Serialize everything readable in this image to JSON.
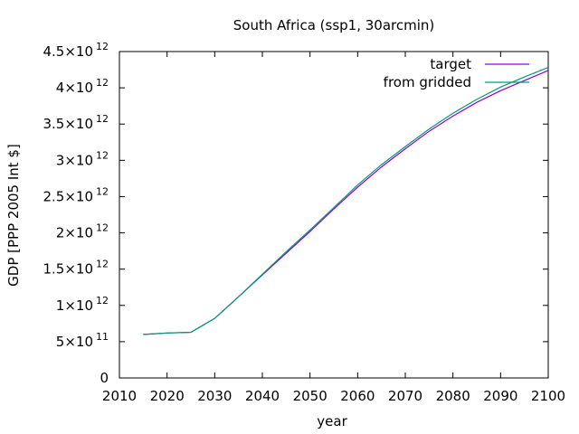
{
  "chart_data": {
    "type": "line",
    "title": "South Africa (ssp1, 30arcmin)",
    "xlabel": "year",
    "ylabel": "GDP [PPP 2005 Int $]",
    "xlim": [
      2010,
      2100
    ],
    "ylim": [
      0,
      4500000000000.0
    ],
    "xticks": [
      2010,
      2020,
      2030,
      2040,
      2050,
      2060,
      2070,
      2080,
      2090,
      2100
    ],
    "xtick_labels": [
      "2010",
      "2020",
      "2030",
      "2040",
      "2050",
      "2060",
      "2070",
      "2080",
      "2090",
      "2100"
    ],
    "yticks": [
      {
        "value": 0,
        "mant": "0",
        "exp": ""
      },
      {
        "value": 500000000000.0,
        "mant": "5×10",
        "exp": "11"
      },
      {
        "value": 1000000000000.0,
        "mant": "1×10",
        "exp": "12"
      },
      {
        "value": 1500000000000.0,
        "mant": "1.5×10",
        "exp": "12"
      },
      {
        "value": 2000000000000.0,
        "mant": "2×10",
        "exp": "12"
      },
      {
        "value": 2500000000000.0,
        "mant": "2.5×10",
        "exp": "12"
      },
      {
        "value": 3000000000000.0,
        "mant": "3×10",
        "exp": "12"
      },
      {
        "value": 3500000000000.0,
        "mant": "3.5×10",
        "exp": "12"
      },
      {
        "value": 4000000000000.0,
        "mant": "4×10",
        "exp": "12"
      },
      {
        "value": 4500000000000.0,
        "mant": "4.5×10",
        "exp": "12"
      }
    ],
    "grid": false,
    "legend_position": "top-right",
    "series": [
      {
        "name": "target",
        "color": "#9400d3",
        "x": [
          2015,
          2020,
          2025,
          2030,
          2035,
          2040,
          2045,
          2050,
          2055,
          2060,
          2065,
          2070,
          2075,
          2080,
          2085,
          2090,
          2095,
          2100
        ],
        "y": [
          600000000000.0,
          620000000000.0,
          630000000000.0,
          820000000000.0,
          1120000000000.0,
          1420000000000.0,
          1720000000000.0,
          2020000000000.0,
          2330000000000.0,
          2630000000000.0,
          2910000000000.0,
          3160000000000.0,
          3400000000000.0,
          3610000000000.0,
          3800000000000.0,
          3960000000000.0,
          4100000000000.0,
          4240000000000.0
        ]
      },
      {
        "name": "from gridded",
        "color": "#009e73",
        "x": [
          2015,
          2020,
          2025,
          2030,
          2035,
          2040,
          2045,
          2050,
          2055,
          2060,
          2065,
          2070,
          2075,
          2080,
          2085,
          2090,
          2095,
          2100
        ],
        "y": [
          600000000000.0,
          620000000000.0,
          630000000000.0,
          820000000000.0,
          1120000000000.0,
          1430000000000.0,
          1740000000000.0,
          2040000000000.0,
          2350000000000.0,
          2660000000000.0,
          2940000000000.0,
          3190000000000.0,
          3430000000000.0,
          3650000000000.0,
          3840000000000.0,
          4010000000000.0,
          4150000000000.0,
          4280000000000.0
        ]
      }
    ]
  }
}
